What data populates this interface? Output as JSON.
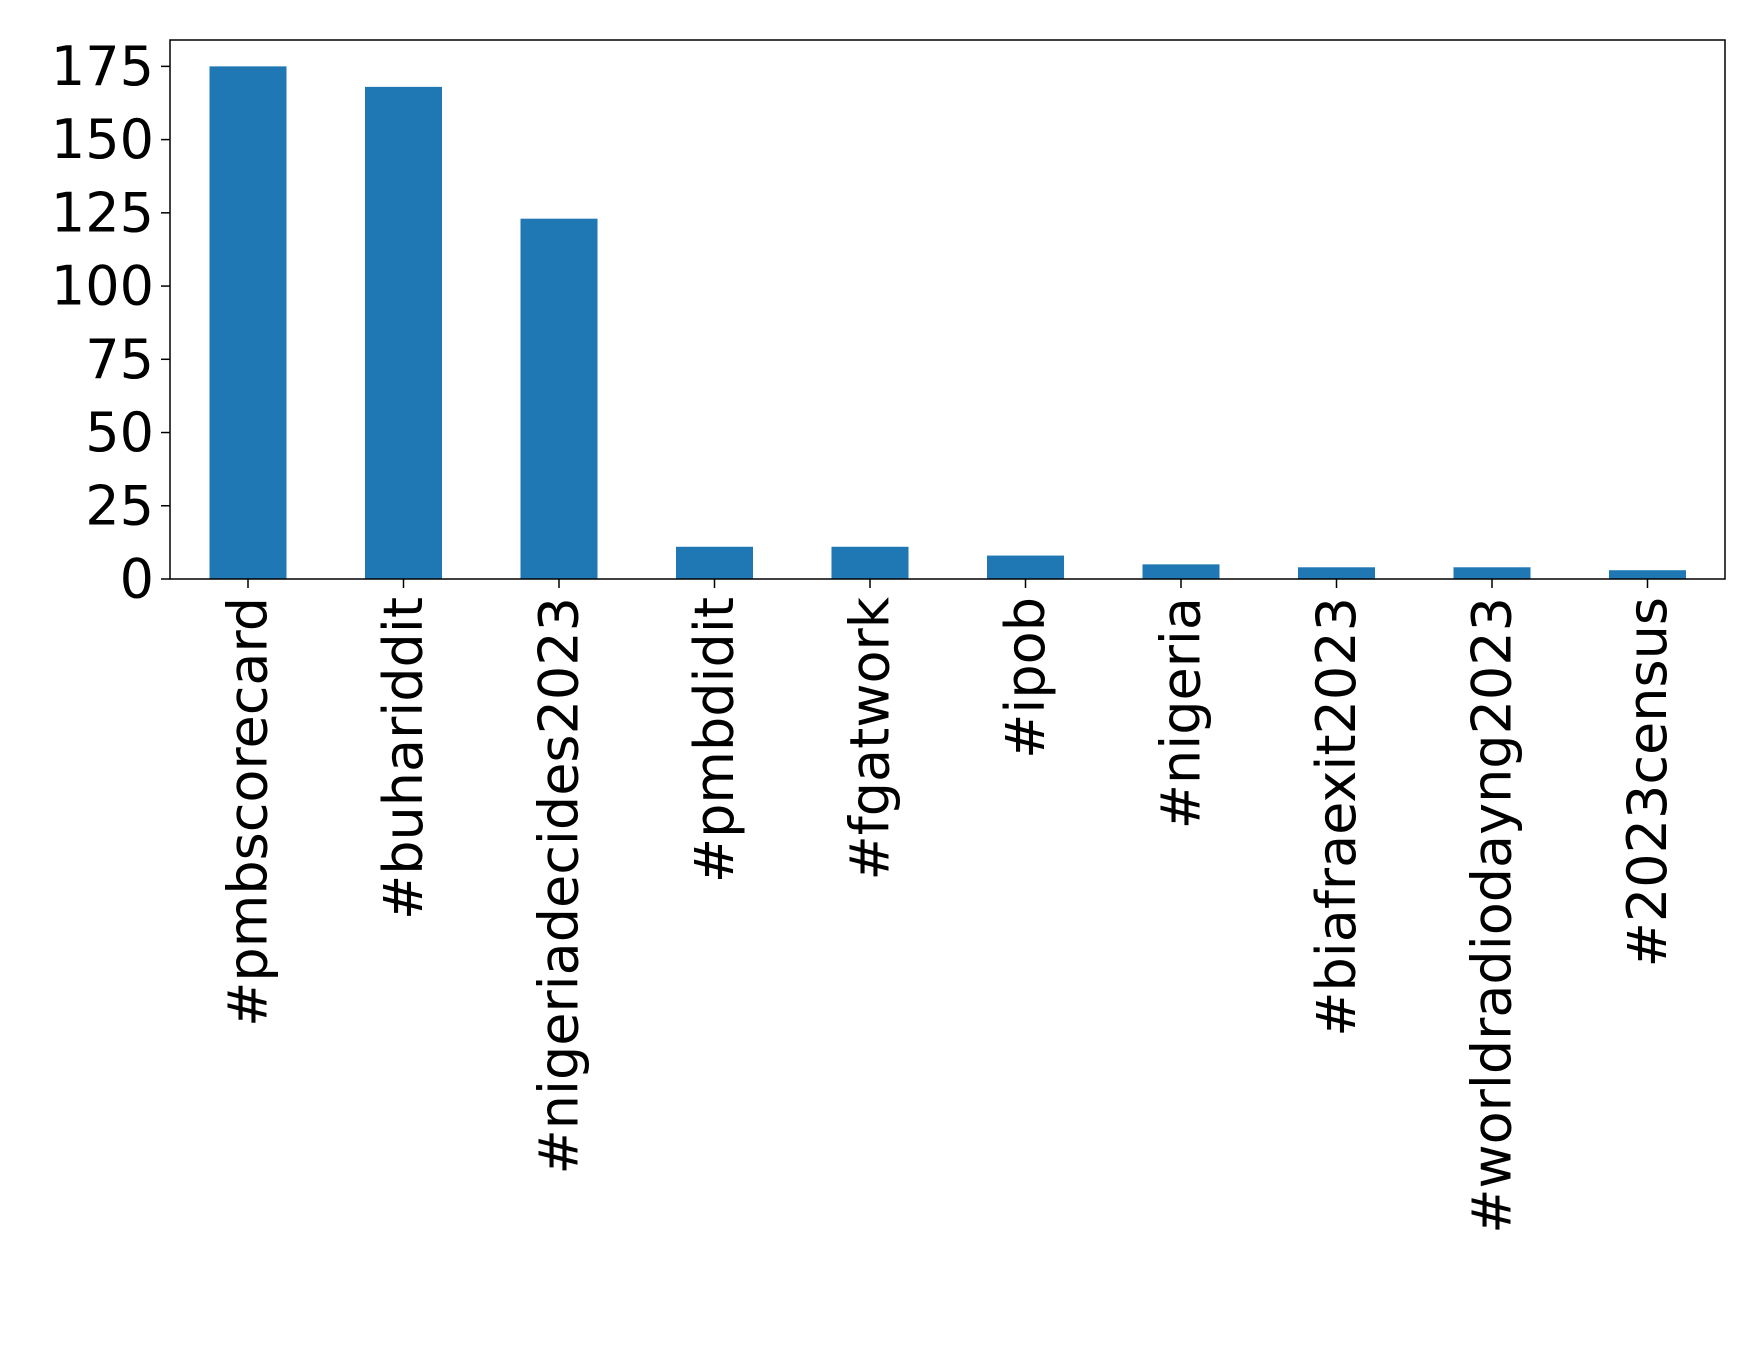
{
  "chart_data": {
    "type": "bar",
    "title": "",
    "xlabel": "",
    "ylabel": "",
    "categories": [
      "#pmbscorecard",
      "#buhariddit",
      "#nigeriadecides2023",
      "#pmbdidit",
      "#fgatwork",
      "#ipob",
      "#nigeria",
      "#biafraexit2023",
      "#worldradiodayng2023",
      "#2023census"
    ],
    "values": [
      175,
      168,
      123,
      11,
      11,
      8,
      5,
      4,
      4,
      3
    ],
    "ylim": [
      0,
      184
    ],
    "yticks": [
      0,
      25,
      50,
      75,
      100,
      125,
      150,
      175
    ],
    "bar_color": "#1f77b4",
    "grid": false,
    "legend": "none"
  }
}
